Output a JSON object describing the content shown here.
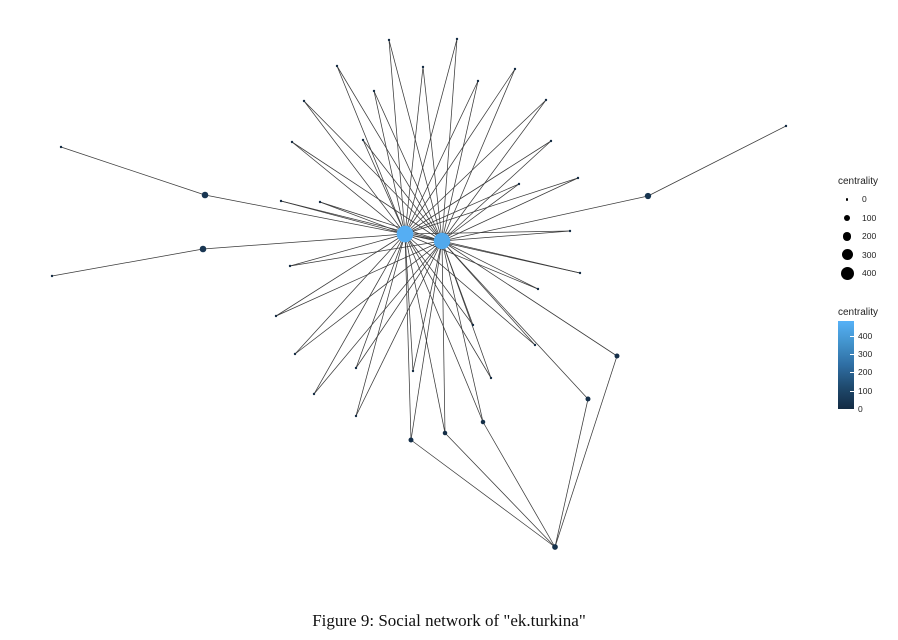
{
  "figure": {
    "caption": "Figure 9: Social network of \"ek.turkina\"",
    "legend": {
      "size": {
        "title": "centrality",
        "entries": [
          {
            "label": "0",
            "value": 0
          },
          {
            "label": "100",
            "value": 100
          },
          {
            "label": "200",
            "value": 200
          },
          {
            "label": "300",
            "value": 300
          },
          {
            "label": "400",
            "value": 400
          }
        ]
      },
      "color": {
        "title": "centrality",
        "ticks": [
          "400",
          "300",
          "200",
          "100",
          "0"
        ],
        "tick_values": [
          400,
          300,
          200,
          100,
          0
        ],
        "max": 480,
        "low_color": "#132B43",
        "high_color": "#56B1F7"
      }
    }
  },
  "network": {
    "nodes": [
      {
        "id": "hub1",
        "centrality": 470
      },
      {
        "id": "hub2",
        "centrality": 450
      },
      {
        "id": "b1",
        "centrality": 40
      },
      {
        "id": "b2",
        "centrality": 40
      },
      {
        "id": "b3",
        "centrality": 35
      },
      {
        "id": "far_left_top",
        "centrality": 0
      },
      {
        "id": "far_left_bot",
        "centrality": 0
      },
      {
        "id": "far_right",
        "centrality": 0
      },
      {
        "id": "bottom",
        "centrality": 25
      },
      {
        "id": "r1",
        "centrality": 15
      },
      {
        "id": "r2",
        "centrality": 15
      },
      {
        "id": "d1",
        "centrality": 15
      },
      {
        "id": "d2",
        "centrality": 10
      },
      {
        "id": "d3",
        "centrality": 10
      },
      {
        "id": "s1",
        "centrality": 0
      },
      {
        "id": "s2",
        "centrality": 0
      },
      {
        "id": "s3",
        "centrality": 0
      },
      {
        "id": "s4",
        "centrality": 0
      },
      {
        "id": "s5",
        "centrality": 0
      },
      {
        "id": "s6",
        "centrality": 0
      },
      {
        "id": "s7",
        "centrality": 0
      },
      {
        "id": "s8",
        "centrality": 0
      },
      {
        "id": "s9",
        "centrality": 0
      },
      {
        "id": "s10",
        "centrality": 0
      },
      {
        "id": "s11",
        "centrality": 0
      },
      {
        "id": "s12",
        "centrality": 0
      },
      {
        "id": "s13",
        "centrality": 0
      },
      {
        "id": "s14",
        "centrality": 0
      },
      {
        "id": "s15",
        "centrality": 0
      },
      {
        "id": "s16",
        "centrality": 0
      },
      {
        "id": "s17",
        "centrality": 0
      },
      {
        "id": "s18",
        "centrality": 0
      },
      {
        "id": "s19",
        "centrality": 0
      },
      {
        "id": "s20",
        "centrality": 0
      },
      {
        "id": "s21",
        "centrality": 0
      },
      {
        "id": "s22",
        "centrality": 0
      },
      {
        "id": "s23",
        "centrality": 0
      },
      {
        "id": "s24",
        "centrality": 0
      },
      {
        "id": "s25",
        "centrality": 0
      },
      {
        "id": "s26",
        "centrality": 0
      },
      {
        "id": "s27",
        "centrality": 0
      },
      {
        "id": "s28",
        "centrality": 0
      },
      {
        "id": "s29",
        "centrality": 0
      }
    ],
    "edges": [
      [
        "far_left_top",
        "b2"
      ],
      [
        "far_left_bot",
        "b1"
      ],
      [
        "b1",
        "hub1"
      ],
      [
        "b2",
        "hub1"
      ],
      [
        "hub2",
        "b3"
      ],
      [
        "b3",
        "far_right"
      ],
      [
        "hub1",
        "hub2"
      ],
      [
        "hub1",
        "s1"
      ],
      [
        "hub2",
        "s1"
      ],
      [
        "hub1",
        "s2"
      ],
      [
        "hub2",
        "s2"
      ],
      [
        "hub1",
        "s3"
      ],
      [
        "hub2",
        "s3"
      ],
      [
        "hub1",
        "s4"
      ],
      [
        "hub2",
        "s4"
      ],
      [
        "hub1",
        "s5"
      ],
      [
        "hub2",
        "s5"
      ],
      [
        "hub1",
        "s6"
      ],
      [
        "hub2",
        "s6"
      ],
      [
        "hub1",
        "s7"
      ],
      [
        "hub2",
        "s7"
      ],
      [
        "hub1",
        "s8"
      ],
      [
        "hub2",
        "s8"
      ],
      [
        "hub1",
        "s9"
      ],
      [
        "hub2",
        "s9"
      ],
      [
        "hub1",
        "s10"
      ],
      [
        "hub2",
        "s10"
      ],
      [
        "hub1",
        "s11"
      ],
      [
        "hub2",
        "s11"
      ],
      [
        "hub1",
        "s12"
      ],
      [
        "hub2",
        "s12"
      ],
      [
        "hub1",
        "s13"
      ],
      [
        "hub2",
        "s13"
      ],
      [
        "hub1",
        "s14"
      ],
      [
        "hub2",
        "s14"
      ],
      [
        "hub1",
        "s15"
      ],
      [
        "hub2",
        "s15"
      ],
      [
        "hub1",
        "s16"
      ],
      [
        "hub2",
        "s16"
      ],
      [
        "hub1",
        "s17"
      ],
      [
        "hub2",
        "s17"
      ],
      [
        "hub1",
        "s18"
      ],
      [
        "hub2",
        "s18"
      ],
      [
        "hub1",
        "s19"
      ],
      [
        "hub2",
        "s19"
      ],
      [
        "hub1",
        "s20"
      ],
      [
        "hub2",
        "s20"
      ],
      [
        "hub1",
        "s21"
      ],
      [
        "hub2",
        "s21"
      ],
      [
        "hub1",
        "s22"
      ],
      [
        "hub2",
        "s22"
      ],
      [
        "hub1",
        "s23"
      ],
      [
        "hub2",
        "s23"
      ],
      [
        "hub1",
        "s24"
      ],
      [
        "hub2",
        "s24"
      ],
      [
        "hub1",
        "s25"
      ],
      [
        "hub2",
        "s25"
      ],
      [
        "hub1",
        "s26"
      ],
      [
        "hub2",
        "s26"
      ],
      [
        "hub1",
        "s27"
      ],
      [
        "hub2",
        "s27"
      ],
      [
        "hub1",
        "s28"
      ],
      [
        "hub2",
        "s28"
      ],
      [
        "hub1",
        "s29"
      ],
      [
        "hub2",
        "s29"
      ],
      [
        "hub1",
        "d1"
      ],
      [
        "hub2",
        "d1"
      ],
      [
        "hub1",
        "d2"
      ],
      [
        "hub2",
        "d2"
      ],
      [
        "hub1",
        "d3"
      ],
      [
        "hub2",
        "d3"
      ],
      [
        "hub2",
        "r1"
      ],
      [
        "hub2",
        "r2"
      ],
      [
        "r1",
        "bottom"
      ],
      [
        "r2",
        "bottom"
      ],
      [
        "d1",
        "bottom"
      ],
      [
        "d2",
        "bottom"
      ],
      [
        "d3",
        "bottom"
      ]
    ]
  }
}
